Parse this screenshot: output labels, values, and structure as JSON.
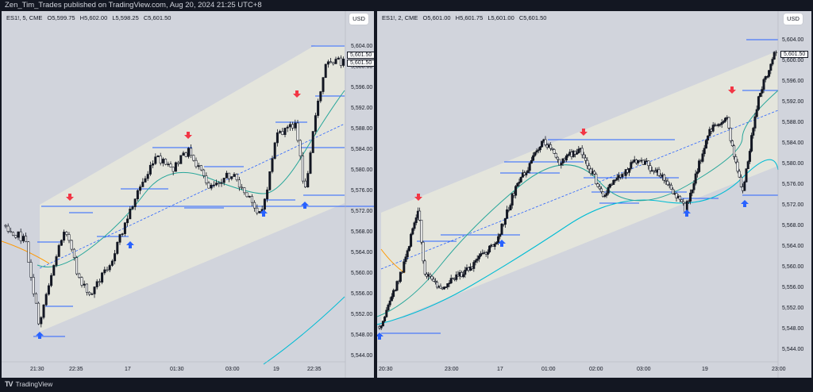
{
  "header": {
    "published": "Zen_Tim_Trades published on TradingView.com, Aug 20, 2024 21:25 UTC+8"
  },
  "left_chart": {
    "symbol": "ES1!, 5, CME",
    "ohlc": [
      "O5,599.75",
      "H5,602.00",
      "L5,598.25",
      "C5,601.50"
    ],
    "currency": "USD",
    "last_price_tags": [
      "5,601.50",
      "5,601.50"
    ],
    "price_axis": [
      "5,604.00",
      "5,600.00",
      "5,596.00",
      "5,592.00",
      "5,588.00",
      "5,584.00",
      "5,580.00",
      "5,576.00",
      "5,572.00",
      "5,568.00",
      "5,564.00",
      "5,560.00",
      "5,556.00",
      "5,552.00",
      "5,548.00",
      "5,544.00"
    ],
    "time_axis": [
      "21:30",
      "22:35",
      "17",
      "01:30",
      "03:00",
      "19",
      "22:35"
    ]
  },
  "right_chart": {
    "symbol": "ES1!, 2, CME",
    "ohlc": [
      "O5,601.00",
      "H5,601.75",
      "L5,601.00",
      "C5,601.50"
    ],
    "currency": "USD",
    "last_price_tag": "5,601.50",
    "price_axis": [
      "5,604.00",
      "5,600.00",
      "5,596.00",
      "5,592.00",
      "5,588.00",
      "5,584.00",
      "5,580.00",
      "5,576.00",
      "5,572.00",
      "5,568.00",
      "5,564.00",
      "5,560.00",
      "5,556.00",
      "5,552.00",
      "5,548.00",
      "5,544.00"
    ],
    "time_axis": [
      "20:30",
      "23:00",
      "17",
      "01:00",
      "02:00",
      "03:00",
      "19",
      "23:00"
    ]
  },
  "footer": {
    "brand": "TradingView"
  },
  "colors": {
    "background": "#d1d4dc",
    "frame": "#131722",
    "channel_fill": "#e4e5dc",
    "level_line": "#2962ff",
    "arrow_up": "#2962ff",
    "arrow_down": "#f23645",
    "ma_fast": "#26a69a",
    "ma_slow": "#00bcd4",
    "ma_orange": "#ff9800"
  }
}
